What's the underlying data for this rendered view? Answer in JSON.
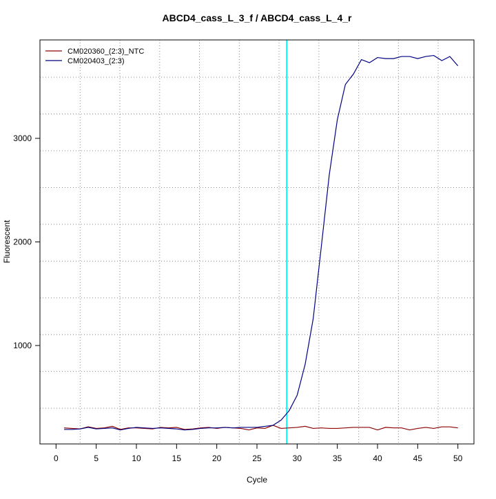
{
  "chart_data": {
    "type": "line",
    "title": "ABCD4_cass_L_3_f / ABCD4_cass_L_4_r",
    "x_label": "Cycle",
    "y_label": "Fluorescent",
    "x": [
      1,
      2,
      3,
      4,
      5,
      6,
      7,
      8,
      9,
      10,
      11,
      12,
      13,
      14,
      15,
      16,
      17,
      18,
      19,
      20,
      21,
      22,
      23,
      24,
      25,
      26,
      27,
      28,
      29,
      30,
      31,
      32,
      33,
      34,
      35,
      36,
      37,
      38,
      39,
      40,
      41,
      42,
      43,
      44,
      45,
      46,
      47,
      48,
      49,
      50
    ],
    "series": [
      {
        "name": "CM020360_(2:3)_NTC",
        "color": "#8b0000",
        "values": [
          205,
          200,
          195,
          215,
          200,
          205,
          220,
          190,
          205,
          205,
          200,
          195,
          210,
          205,
          210,
          190,
          195,
          205,
          210,
          200,
          210,
          205,
          200,
          185,
          205,
          200,
          230,
          200,
          205,
          210,
          220,
          200,
          205,
          200,
          200,
          205,
          210,
          210,
          210,
          185,
          210,
          205,
          205,
          185,
          200,
          210,
          200,
          215,
          215,
          205
        ]
      },
      {
        "name": "CM020403_(2:3)",
        "color": "#000080",
        "values": [
          190,
          190,
          195,
          210,
          195,
          200,
          205,
          185,
          200,
          210,
          205,
          200,
          205,
          200,
          195,
          185,
          190,
          200,
          205,
          205,
          210,
          205,
          210,
          210,
          210,
          220,
          230,
          280,
          370,
          520,
          820,
          1260,
          1950,
          2650,
          3180,
          3520,
          3620,
          3760,
          3730,
          3780,
          3770,
          3770,
          3790,
          3790,
          3770,
          3790,
          3800,
          3750,
          3790,
          3700
        ]
      }
    ],
    "xlim": [
      -2,
      52
    ],
    "ylim": [
      50,
      3950
    ],
    "xticks": [
      0,
      5,
      10,
      15,
      20,
      25,
      30,
      35,
      40,
      45,
      50
    ],
    "yticks": [
      1000,
      2000,
      3000
    ],
    "grid": true,
    "x_grid": [
      3,
      7.95,
      12.9,
      17.85,
      22.8,
      27.75,
      32.7,
      37.65,
      42.6,
      47.55
    ],
    "y_grid": [
      395,
      750,
      1105,
      1460,
      1815,
      2170,
      2525,
      2880,
      3235,
      3590
    ],
    "threshold_x": 28.7,
    "threshold_color": "#00ffff",
    "legend": "top-left"
  }
}
